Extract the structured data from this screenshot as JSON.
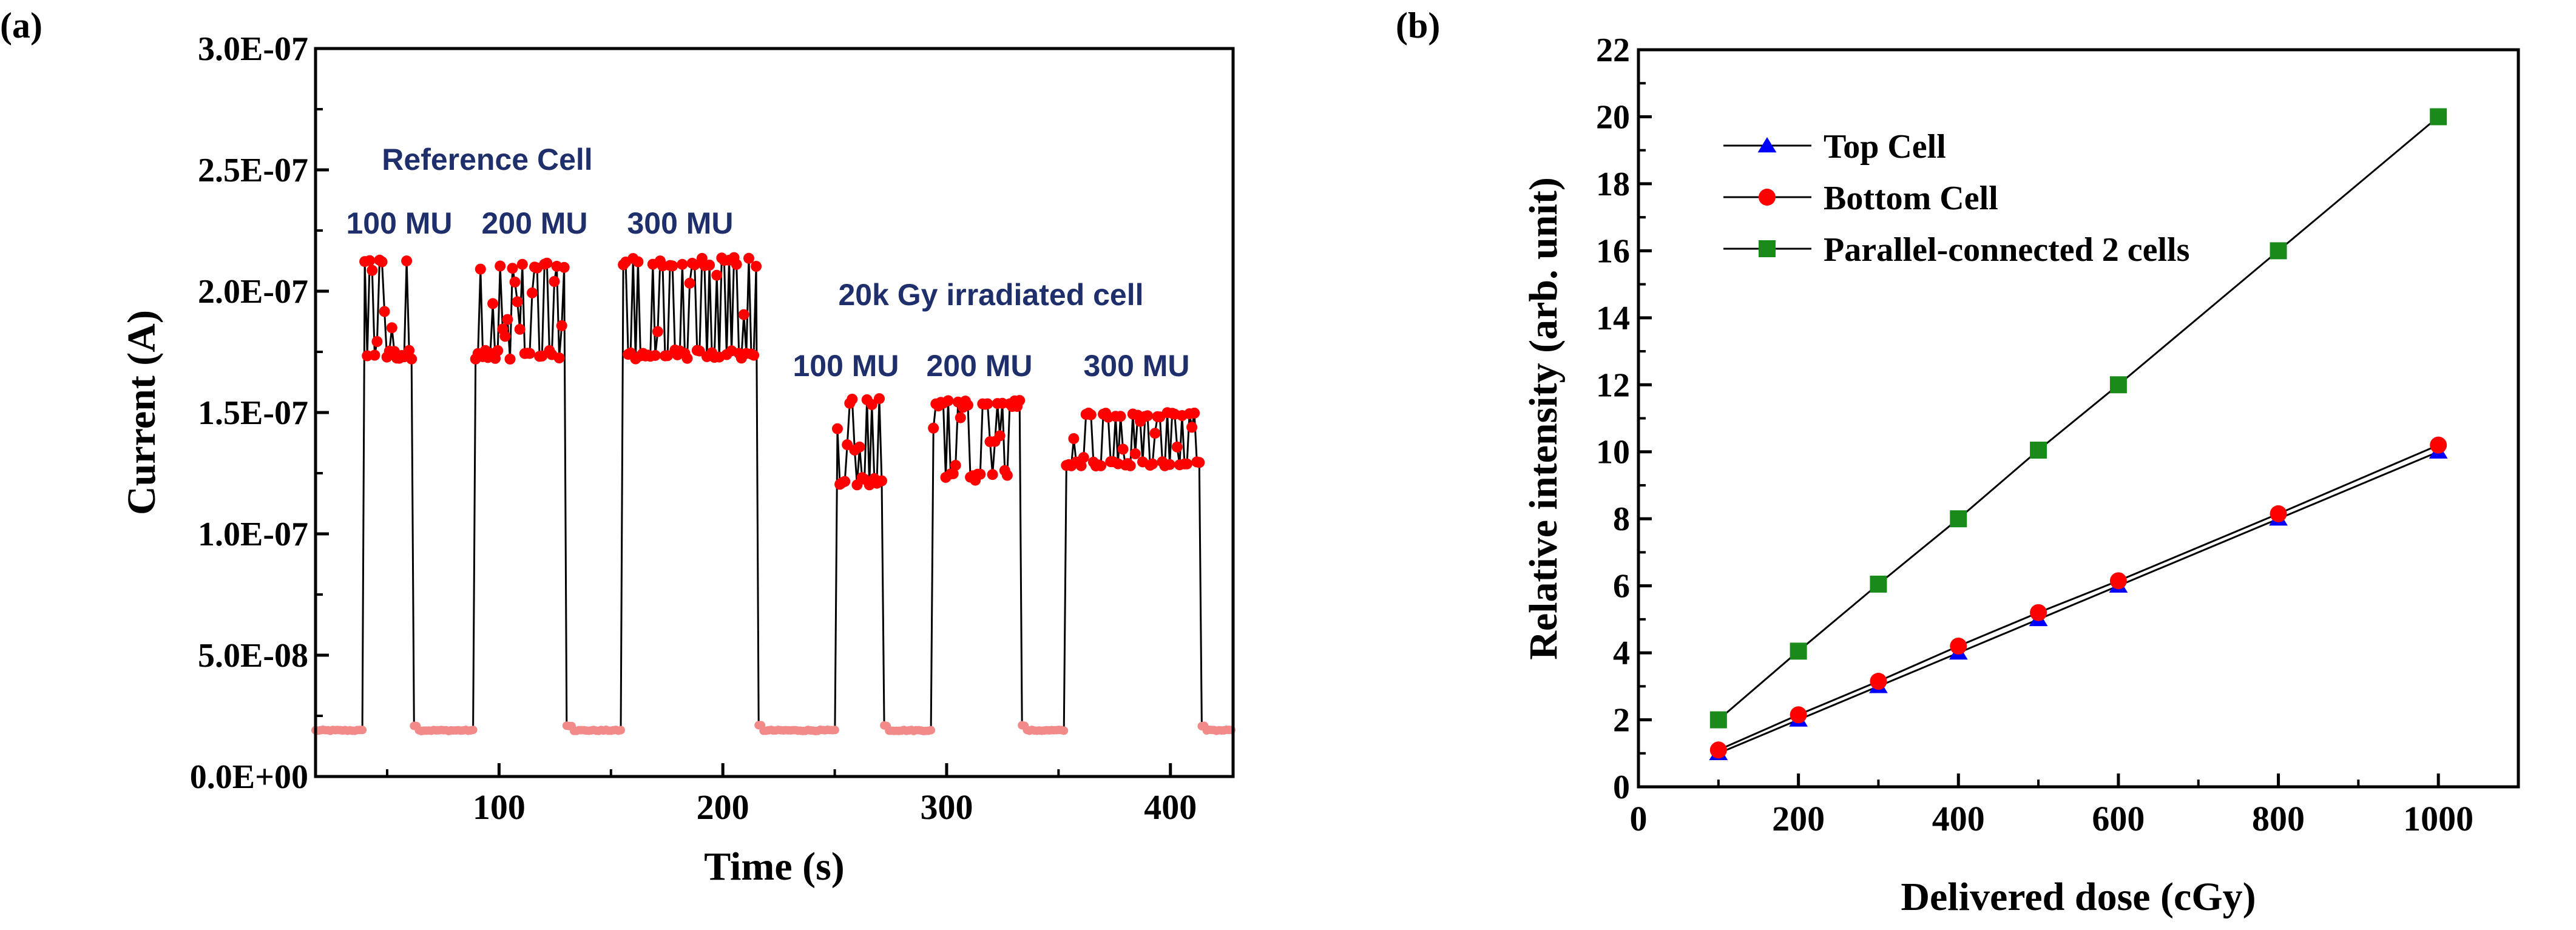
{
  "panel_a_label": "(a)",
  "panel_b_label": "(b)",
  "colors": {
    "series_line": "#000000",
    "marker_red": "#ff0000",
    "marker_blue": "#0000ff",
    "marker_green": "#1a8a1a",
    "annotation_navy": "#1f2f6b",
    "baseline_red": "#f28a8a"
  },
  "chart_data": [
    {
      "id": "a",
      "type": "line",
      "title": "",
      "xlabel": "Time (s)",
      "ylabel": "Current (A)",
      "xlim": [
        18,
        428
      ],
      "ylim": [
        0,
        3e-07
      ],
      "xticks": [
        100,
        200,
        300,
        400
      ],
      "yticks": [
        0,
        5e-08,
        1e-07,
        1.5e-07,
        2e-07,
        2.5e-07,
        3e-07
      ],
      "ytick_labels": [
        "0.0E+00",
        "5.0E-08",
        "1.0E-07",
        "1.5E-07",
        "2.0E-07",
        "2.5E-07",
        "3.0E-07"
      ],
      "baseline": 1.9e-08,
      "pulses": [
        {
          "start": 40,
          "end": 61,
          "low": 1.72e-07,
          "high": 2.14e-07,
          "label": "100 MU"
        },
        {
          "start": 89,
          "end": 130,
          "low": 1.72e-07,
          "high": 2.12e-07,
          "label": "200 MU"
        },
        {
          "start": 155,
          "end": 215,
          "low": 1.72e-07,
          "high": 2.14e-07,
          "label": "300 MU"
        },
        {
          "start": 251,
          "end": 271,
          "low": 1.2e-07,
          "high": 1.56e-07,
          "label": "100 MU"
        },
        {
          "start": 293,
          "end": 333,
          "low": 1.22e-07,
          "high": 1.55e-07,
          "label": "200 MU"
        },
        {
          "start": 353,
          "end": 413,
          "low": 1.28e-07,
          "high": 1.5e-07,
          "label": "300 MU"
        }
      ],
      "group_labels": [
        "Reference Cell",
        "20k Gy irradiated cell"
      ]
    },
    {
      "id": "b",
      "type": "line",
      "title": "",
      "xlabel": "Delivered dose (cGy)",
      "ylabel": "Relative intensity (arb. unit)",
      "xlim": [
        0,
        1100
      ],
      "ylim": [
        0,
        22
      ],
      "xticks": [
        0,
        200,
        400,
        600,
        800,
        1000
      ],
      "yticks": [
        0,
        2,
        4,
        6,
        8,
        10,
        12,
        14,
        16,
        18,
        20,
        22
      ],
      "x": [
        100,
        200,
        300,
        400,
        500,
        600,
        800,
        1000
      ],
      "series": [
        {
          "name": "Top Cell",
          "marker": "triangle",
          "values": [
            1.0,
            2.0,
            3.0,
            4.0,
            5.0,
            6.0,
            8.0,
            10.0
          ]
        },
        {
          "name": "Bottom Cell",
          "marker": "circle",
          "values": [
            1.1,
            2.15,
            3.15,
            4.2,
            5.2,
            6.15,
            8.15,
            10.2
          ]
        },
        {
          "name": "Parallel-connected 2 cells",
          "marker": "square",
          "values": [
            2.0,
            4.05,
            6.05,
            8.0,
            10.05,
            12.0,
            16.0,
            20.0
          ]
        }
      ],
      "legend": "top-left"
    }
  ]
}
